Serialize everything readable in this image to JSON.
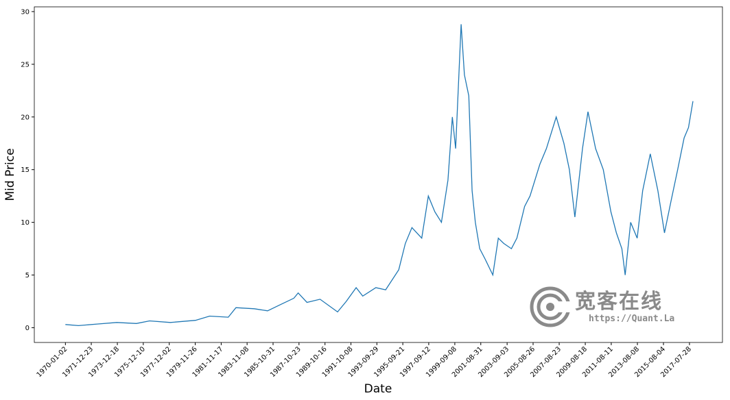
{
  "chart_data": {
    "type": "line",
    "x_label": "Date",
    "y_label": "Mid Price",
    "watermark": {
      "name": "宽客在线",
      "url": "https://Quant.La"
    },
    "xlim": [
      "1967-08-20",
      "2020-02-01"
    ],
    "xticks": [
      "1970-01-02",
      "1971-12-23",
      "1973-12-18",
      "1975-12-10",
      "1977-12-02",
      "1979-11-26",
      "1981-11-17",
      "1983-11-08",
      "1985-10-31",
      "1987-10-23",
      "1989-10-16",
      "1991-10-08",
      "1993-09-29",
      "1995-09-21",
      "1997-09-12",
      "1999-09-08",
      "2001-08-31",
      "2003-09-03",
      "2005-08-26",
      "2007-08-23",
      "2009-08-18",
      "2011-08-11",
      "2013-08-08",
      "2015-08-04",
      "2017-07-28"
    ],
    "ylim": [
      -1.4,
      30.45
    ],
    "yticks": [
      0,
      5,
      10,
      15,
      20,
      25,
      30
    ],
    "x": [
      "1970-01-02",
      "1971-01",
      "1972-06",
      "1973-12",
      "1975-06",
      "1976-06",
      "1978-01",
      "1979-12",
      "1981-01",
      "1982-06",
      "1983-01",
      "1984-06",
      "1985-06",
      "1986-06",
      "1987-06",
      "1987-10",
      "1988-06",
      "1989-06",
      "1990-10",
      "1991-06",
      "1992-03",
      "1992-09",
      "1993-09",
      "1994-06",
      "1995-06",
      "1995-12",
      "1996-06",
      "1997-03",
      "1997-09",
      "1998-03",
      "1998-09",
      "1999-03",
      "1999-07",
      "1999-10",
      "2000-03",
      "2000-06",
      "2000-10",
      "2001-01",
      "2001-04",
      "2001-08",
      "2002-01",
      "2002-08",
      "2003-01",
      "2003-06",
      "2004-01",
      "2004-06",
      "2005-01",
      "2005-06",
      "2006-03",
      "2006-09",
      "2007-06",
      "2008-01",
      "2008-06",
      "2008-11",
      "2009-06",
      "2009-11",
      "2010-06",
      "2011-01",
      "2011-08",
      "2012-01",
      "2012-06",
      "2012-09",
      "2013-02",
      "2013-08",
      "2014-01",
      "2014-08",
      "2015-03",
      "2015-09",
      "2016-03",
      "2016-09",
      "2017-03",
      "2017-07",
      "2017-11"
    ],
    "series": [
      {
        "color": "#1f77b4",
        "values": [
          0.3,
          0.2,
          0.35,
          0.5,
          0.4,
          0.65,
          0.5,
          0.7,
          1.1,
          1.0,
          1.9,
          1.8,
          1.6,
          2.2,
          2.8,
          3.3,
          2.4,
          2.7,
          1.5,
          2.5,
          3.8,
          3.0,
          3.8,
          3.6,
          5.5,
          8.0,
          9.5,
          8.5,
          12.5,
          11.0,
          10.0,
          14.0,
          20,
          17,
          28.8,
          24,
          22,
          13,
          10,
          7.5,
          6.5,
          5.0,
          8.5,
          8.0,
          7.5,
          8.5,
          11.5,
          12.5,
          15.5,
          17,
          20,
          17.5,
          15,
          10.5,
          17,
          20.5,
          17,
          15,
          11,
          9,
          7.5,
          5,
          10,
          8.5,
          13,
          16.5,
          13,
          9,
          12,
          15,
          18,
          19,
          21.5
        ]
      }
    ]
  }
}
